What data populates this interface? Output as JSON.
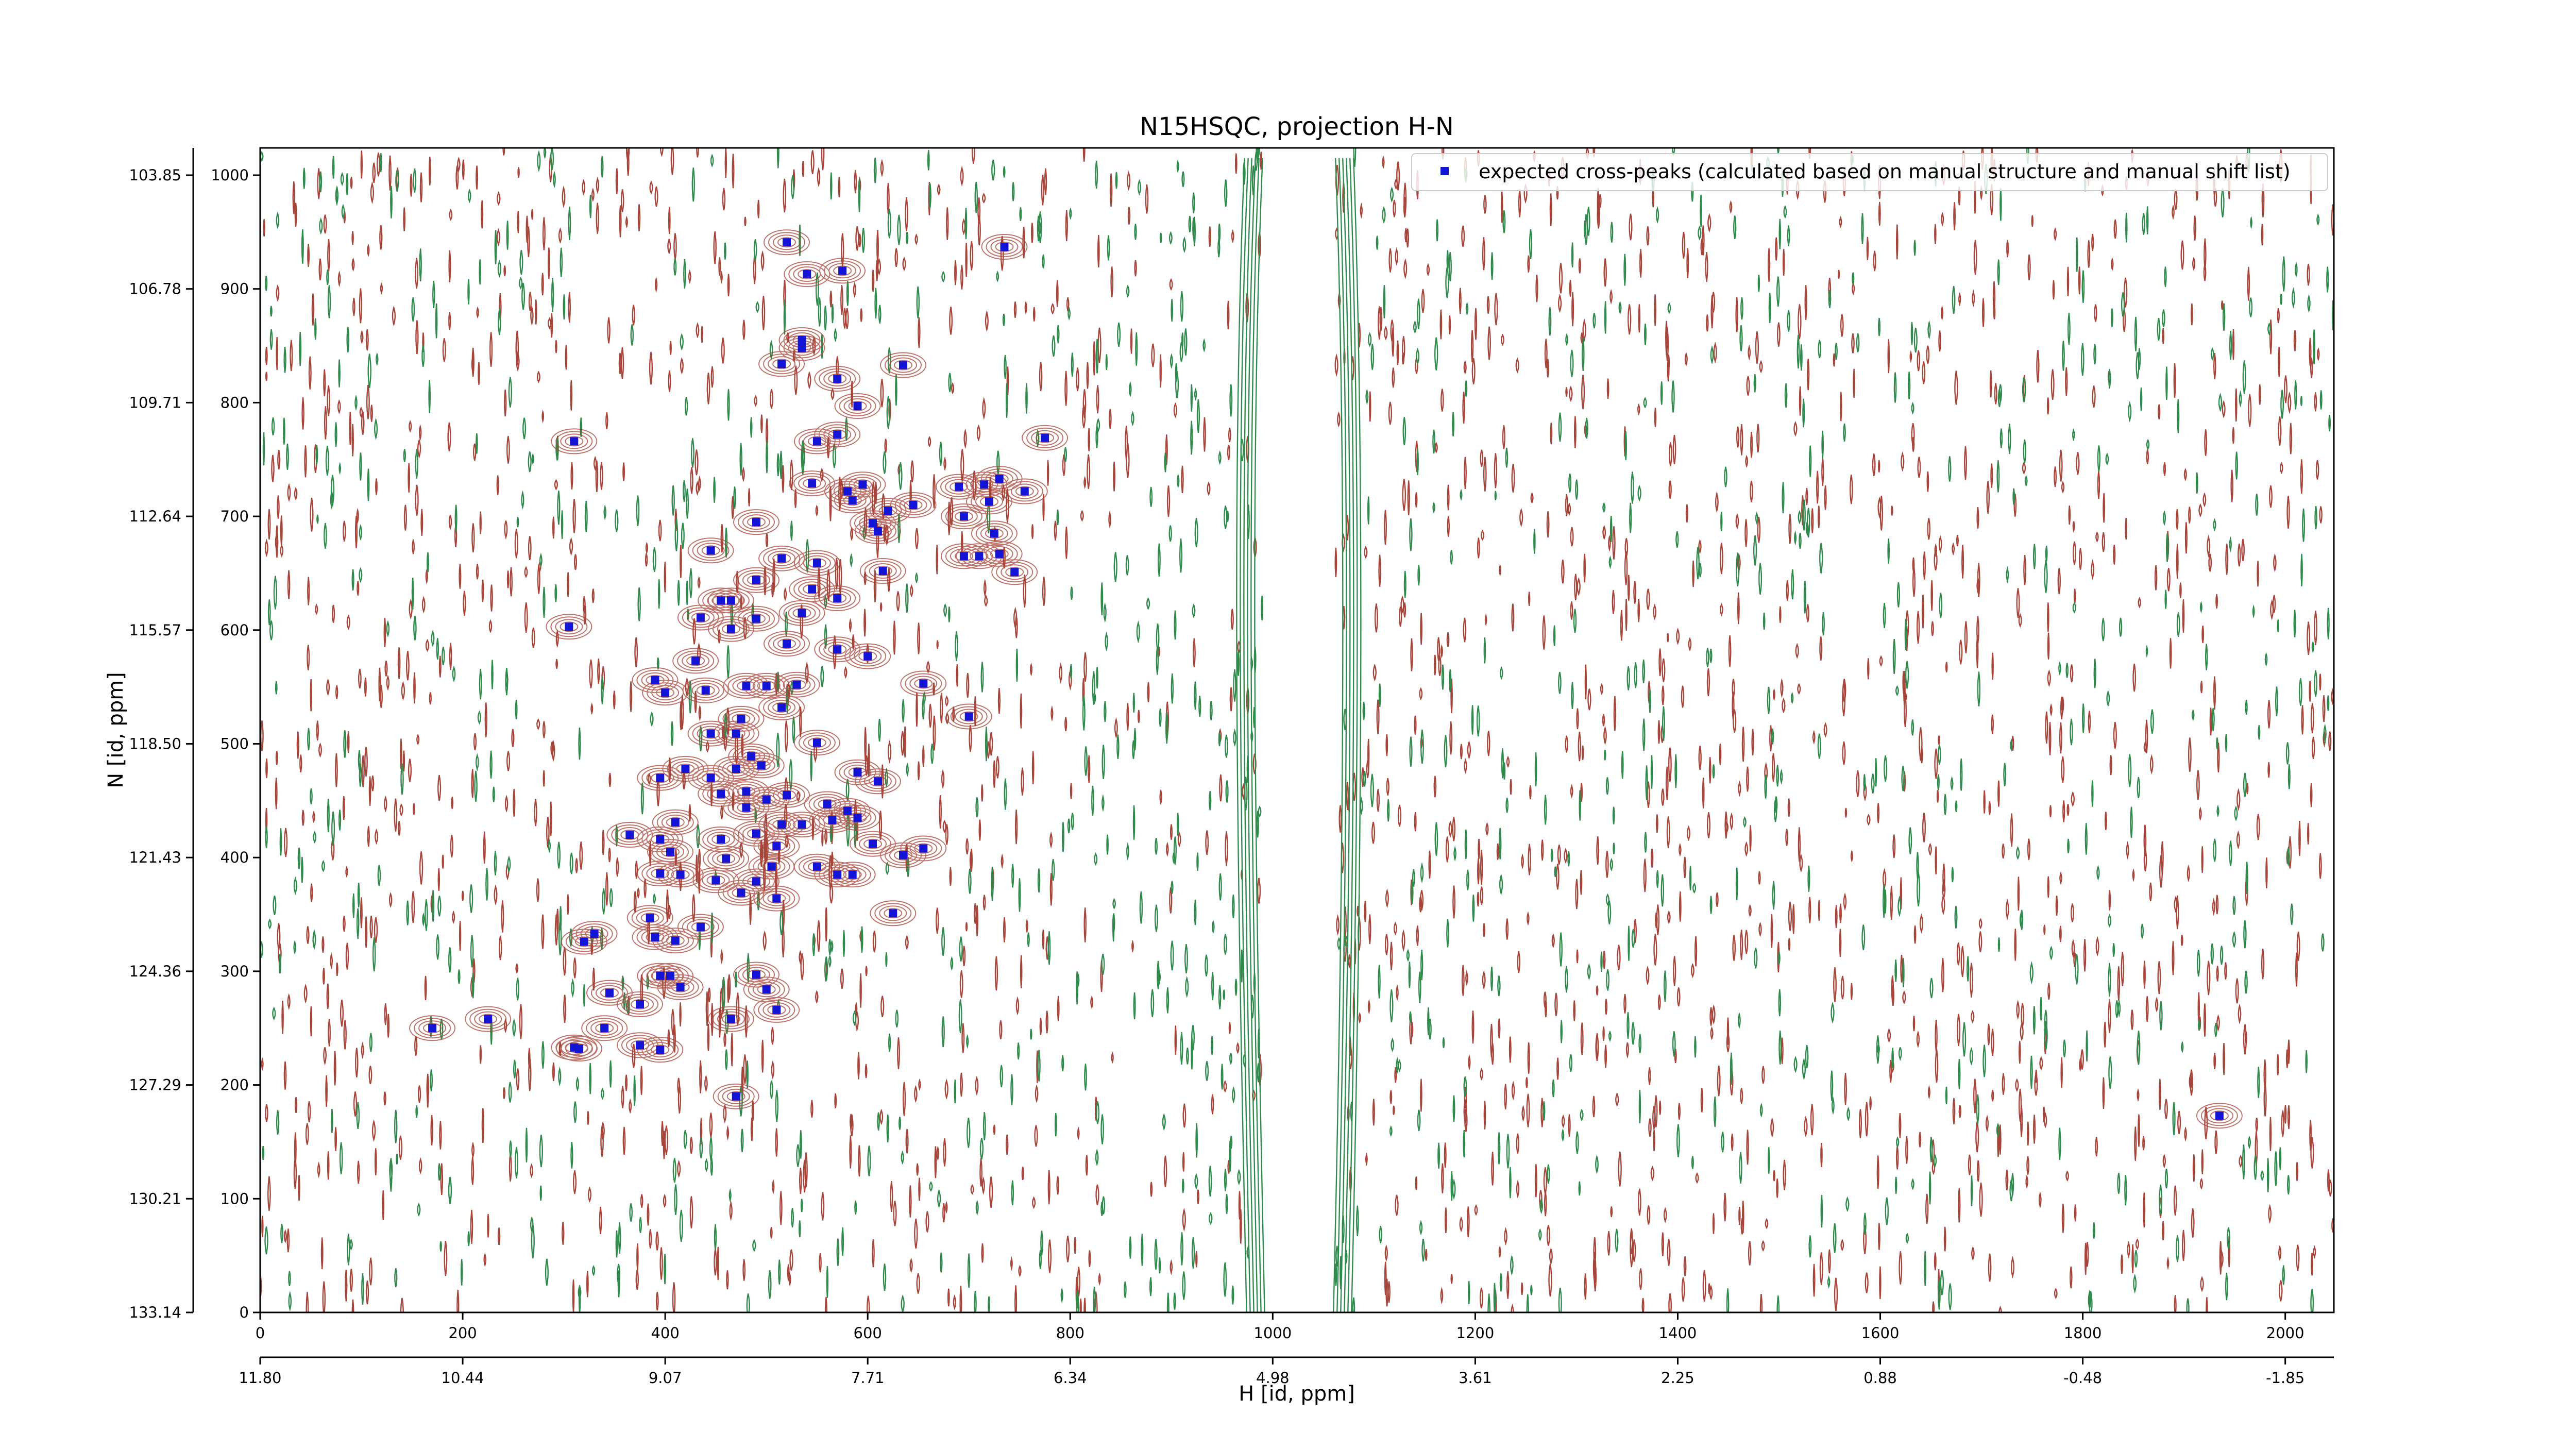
{
  "chart_data": {
    "type": "scatter",
    "title": "N15HSQC, projection H-N",
    "xlabel": "H [id, ppm]",
    "ylabel": "N [id, ppm]",
    "xlim": [
      0,
      2048
    ],
    "ylim": [
      0,
      1024
    ],
    "x_ticks": [
      0,
      200,
      400,
      600,
      800,
      1000,
      1200,
      1400,
      1600,
      1800,
      2000
    ],
    "y_ticks": [
      0,
      100,
      200,
      300,
      400,
      500,
      600,
      700,
      800,
      900,
      1000
    ],
    "x_ppm_ticks": [
      "11.80",
      "10.44",
      "9.07",
      "7.71",
      "6.34",
      "4.98",
      "3.61",
      "2.25",
      "0.88",
      "-0.48",
      "-1.85"
    ],
    "y_ppm_ticks": [
      "133.14",
      "130.21",
      "127.29",
      "124.36",
      "121.43",
      "118.50",
      "115.57",
      "112.64",
      "109.71",
      "106.78",
      "103.85"
    ],
    "legend": {
      "position": "top-right",
      "label": "expected cross-peaks (calculated based on manual structure and manual shift list)"
    },
    "colors": {
      "positive_contours": "#a8453a",
      "negative_contours": "#2e8b4c",
      "peaks": "#1414d6"
    },
    "grid": false,
    "series": [
      {
        "name": "expected cross-peaks (calculated based on manual structure and manual shift list)",
        "x": [
          520,
          540,
          575,
          735,
          515,
          535,
          535,
          635,
          570,
          590,
          550,
          570,
          310,
          775,
          595,
          545,
          580,
          690,
          715,
          730,
          755,
          585,
          720,
          620,
          645,
          605,
          490,
          695,
          610,
          725,
          695,
          710,
          445,
          730,
          515,
          550,
          490,
          615,
          535,
          745,
          465,
          570,
          545,
          490,
          455,
          305,
          435,
          465,
          520,
          570,
          600,
          390,
          430,
          655,
          500,
          530,
          480,
          440,
          400,
          700,
          515,
          475,
          470,
          445,
          550,
          590,
          495,
          485,
          470,
          445,
          610,
          395,
          420,
          455,
          480,
          500,
          560,
          590,
          520,
          480,
          580,
          565,
          410,
          515,
          535,
          490,
          395,
          455,
          365,
          605,
          655,
          635,
          405,
          510,
          460,
          550,
          570,
          585,
          505,
          450,
          395,
          415,
          625,
          490,
          475,
          435,
          385,
          510,
          410,
          320,
          390,
          330,
          405,
          345,
          415,
          490,
          395,
          375,
          500,
          510,
          375,
          395,
          315,
          465,
          170,
          225,
          310,
          340,
          470,
          1935
        ],
        "y": [
          941,
          913,
          916,
          937,
          834,
          855,
          848,
          833,
          821,
          797,
          766,
          772,
          766,
          769,
          728,
          729,
          722,
          726,
          728,
          733,
          722,
          714,
          713,
          705,
          710,
          694,
          695,
          700,
          687,
          685,
          665,
          665,
          670,
          667,
          663,
          659,
          644,
          652,
          615,
          651,
          626,
          628,
          636,
          610,
          626,
          603,
          611,
          601,
          588,
          583,
          577,
          556,
          573,
          553,
          551,
          552,
          551,
          547,
          545,
          524,
          532,
          522,
          509,
          509,
          501,
          475,
          481,
          489,
          478,
          470,
          467,
          470,
          478,
          456,
          458,
          451,
          447,
          435,
          455,
          444,
          441,
          433,
          431,
          429,
          429,
          421,
          416,
          416,
          420,
          412,
          408,
          402,
          405,
          410,
          399,
          392,
          385,
          385,
          392,
          380,
          386,
          385,
          351,
          379,
          369,
          339,
          347,
          364,
          327,
          326,
          330,
          333,
          296,
          281,
          286,
          297,
          296,
          271,
          284,
          266,
          235,
          231,
          232,
          258,
          250,
          258,
          233,
          250,
          190,
          173
        ]
      }
    ]
  }
}
